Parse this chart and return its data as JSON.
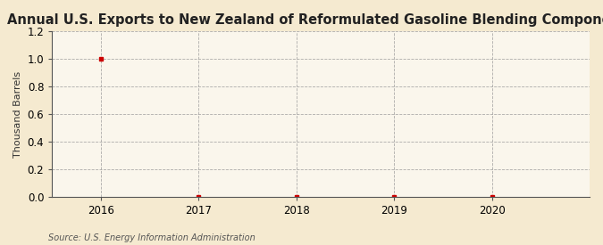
{
  "title": "Annual U.S. Exports to New Zealand of Reformulated Gasoline Blending Components",
  "ylabel": "Thousand Barrels",
  "source": "Source: U.S. Energy Information Administration",
  "x_data": [
    2016,
    2017,
    2018,
    2019,
    2020
  ],
  "y_data": [
    1.0,
    0.0,
    0.0,
    0.0,
    0.0
  ],
  "xlim": [
    2015.5,
    2021.0
  ],
  "ylim": [
    0.0,
    1.2
  ],
  "yticks": [
    0.0,
    0.2,
    0.4,
    0.6,
    0.8,
    1.0,
    1.2
  ],
  "xticks": [
    2016,
    2017,
    2018,
    2019,
    2020
  ],
  "background_color": "#f5ead0",
  "plot_bg_color": "#faf6ec",
  "grid_color": "#999999",
  "marker_color": "#cc0000",
  "title_fontsize": 10.5,
  "label_fontsize": 8,
  "tick_fontsize": 8.5,
  "source_fontsize": 7
}
